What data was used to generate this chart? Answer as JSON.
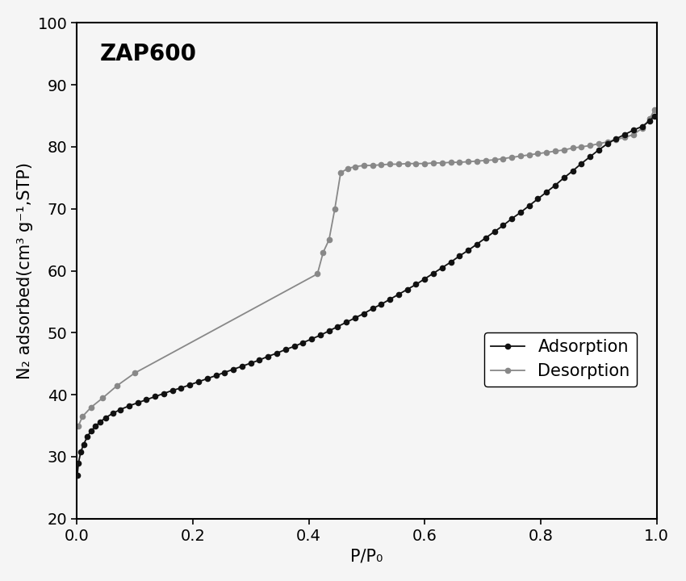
{
  "title_text": "ZAP600",
  "xlabel": "P/P₀",
  "ylabel": "N₂ adsorbed(cm³ g⁻¹,STP)",
  "xlim": [
    0.0,
    1.0
  ],
  "ylim": [
    20,
    100
  ],
  "yticks": [
    20,
    30,
    40,
    50,
    60,
    70,
    80,
    90,
    100
  ],
  "xticks": [
    0.0,
    0.2,
    0.4,
    0.6,
    0.8,
    1.0
  ],
  "adsorption_color": "#111111",
  "desorption_color": "#888888",
  "background_color": "#f5f5f5",
  "adsorption_x": [
    0.001,
    0.003,
    0.007,
    0.012,
    0.018,
    0.025,
    0.032,
    0.04,
    0.05,
    0.062,
    0.075,
    0.09,
    0.105,
    0.12,
    0.135,
    0.15,
    0.165,
    0.18,
    0.195,
    0.21,
    0.225,
    0.24,
    0.255,
    0.27,
    0.285,
    0.3,
    0.315,
    0.33,
    0.345,
    0.36,
    0.375,
    0.39,
    0.405,
    0.42,
    0.435,
    0.45,
    0.465,
    0.48,
    0.495,
    0.51,
    0.525,
    0.54,
    0.555,
    0.57,
    0.585,
    0.6,
    0.615,
    0.63,
    0.645,
    0.66,
    0.675,
    0.69,
    0.705,
    0.72,
    0.735,
    0.75,
    0.765,
    0.78,
    0.795,
    0.81,
    0.825,
    0.84,
    0.855,
    0.87,
    0.885,
    0.9,
    0.915,
    0.93,
    0.945,
    0.96,
    0.975,
    0.988,
    0.996
  ],
  "adsorption_y": [
    27.0,
    29.0,
    30.8,
    32.0,
    33.2,
    34.2,
    34.9,
    35.6,
    36.3,
    37.0,
    37.6,
    38.2,
    38.7,
    39.2,
    39.7,
    40.2,
    40.7,
    41.1,
    41.6,
    42.1,
    42.6,
    43.1,
    43.6,
    44.1,
    44.6,
    45.1,
    45.6,
    46.2,
    46.7,
    47.3,
    47.8,
    48.4,
    49.0,
    49.6,
    50.3,
    51.0,
    51.7,
    52.4,
    53.1,
    53.9,
    54.6,
    55.4,
    56.2,
    57.0,
    57.8,
    58.7,
    59.6,
    60.5,
    61.4,
    62.4,
    63.3,
    64.3,
    65.3,
    66.3,
    67.3,
    68.4,
    69.4,
    70.5,
    71.6,
    72.7,
    73.8,
    75.0,
    76.1,
    77.3,
    78.4,
    79.5,
    80.5,
    81.3,
    82.0,
    82.7,
    83.3,
    84.2,
    85.0
  ],
  "desorption_x": [
    0.996,
    0.988,
    0.975,
    0.96,
    0.945,
    0.93,
    0.915,
    0.9,
    0.885,
    0.87,
    0.855,
    0.84,
    0.825,
    0.81,
    0.795,
    0.78,
    0.765,
    0.75,
    0.735,
    0.72,
    0.705,
    0.69,
    0.675,
    0.66,
    0.645,
    0.63,
    0.615,
    0.6,
    0.585,
    0.57,
    0.555,
    0.54,
    0.525,
    0.51,
    0.495,
    0.48,
    0.467,
    0.455,
    0.445,
    0.435,
    0.425,
    0.415,
    0.1,
    0.07,
    0.045,
    0.025,
    0.01,
    0.003
  ],
  "desorption_y": [
    86.0,
    84.5,
    83.0,
    82.0,
    81.5,
    81.2,
    80.8,
    80.5,
    80.2,
    80.0,
    79.8,
    79.5,
    79.3,
    79.1,
    78.9,
    78.7,
    78.5,
    78.3,
    78.1,
    77.9,
    77.8,
    77.7,
    77.6,
    77.5,
    77.5,
    77.4,
    77.4,
    77.3,
    77.3,
    77.3,
    77.2,
    77.2,
    77.1,
    77.0,
    77.0,
    76.8,
    76.5,
    75.8,
    70.0,
    65.0,
    63.0,
    59.5,
    43.5,
    41.5,
    39.5,
    38.0,
    36.5,
    35.0
  ],
  "legend_adsorption": "Adsorption",
  "legend_desorption": "Desorption",
  "marker_size": 4.5,
  "linewidth": 1.3,
  "title_fontsize": 20,
  "label_fontsize": 15,
  "tick_labelsize": 14,
  "legend_fontsize": 15
}
